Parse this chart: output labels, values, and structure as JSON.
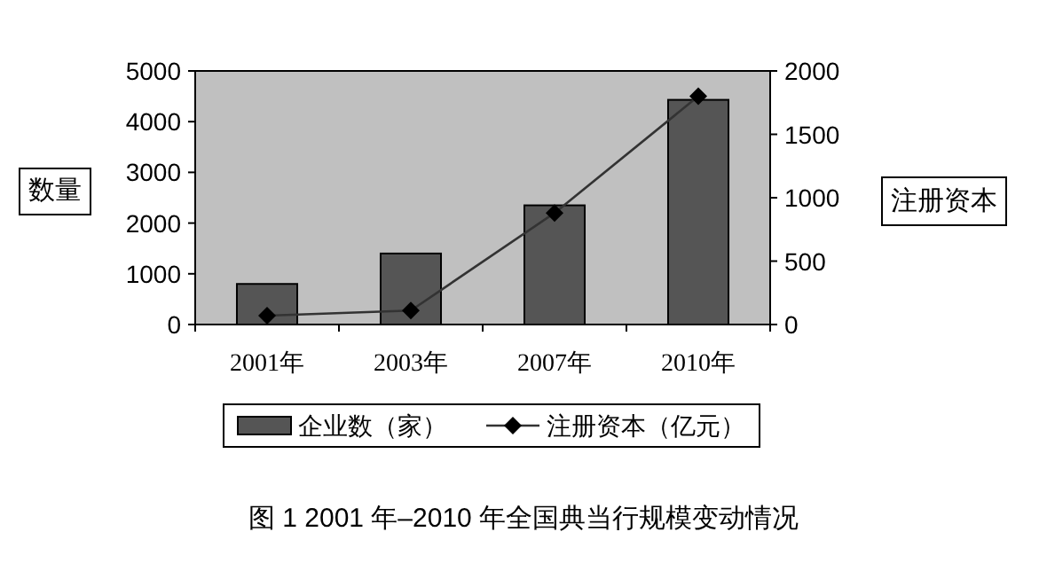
{
  "chart_data": {
    "type": "bar",
    "title": "图 1 2001 年–2010 年全国典当行规模变动情况",
    "ylabel": "数量",
    "y2label": "注册资本",
    "categories": [
      "2001年",
      "2003年",
      "2007年",
      "2010年"
    ],
    "series": [
      {
        "name": "企业数（家）",
        "color": "#555555",
        "values": [
          800,
          1400,
          2350,
          4430
        ]
      },
      {
        "name": "注册资本（亿元）",
        "type": "line",
        "axis": "y2",
        "color": "#333333",
        "marker": "diamond",
        "values": [
          70,
          110,
          880,
          1800
        ]
      }
    ],
    "ylim": [
      0,
      5000
    ],
    "yticks": [
      0,
      1000,
      2000,
      3000,
      4000,
      5000
    ],
    "y2lim": [
      0,
      2000
    ],
    "y2ticks": [
      0,
      500,
      1000,
      1500,
      2000
    ],
    "legend": "bottom",
    "grid": false
  }
}
